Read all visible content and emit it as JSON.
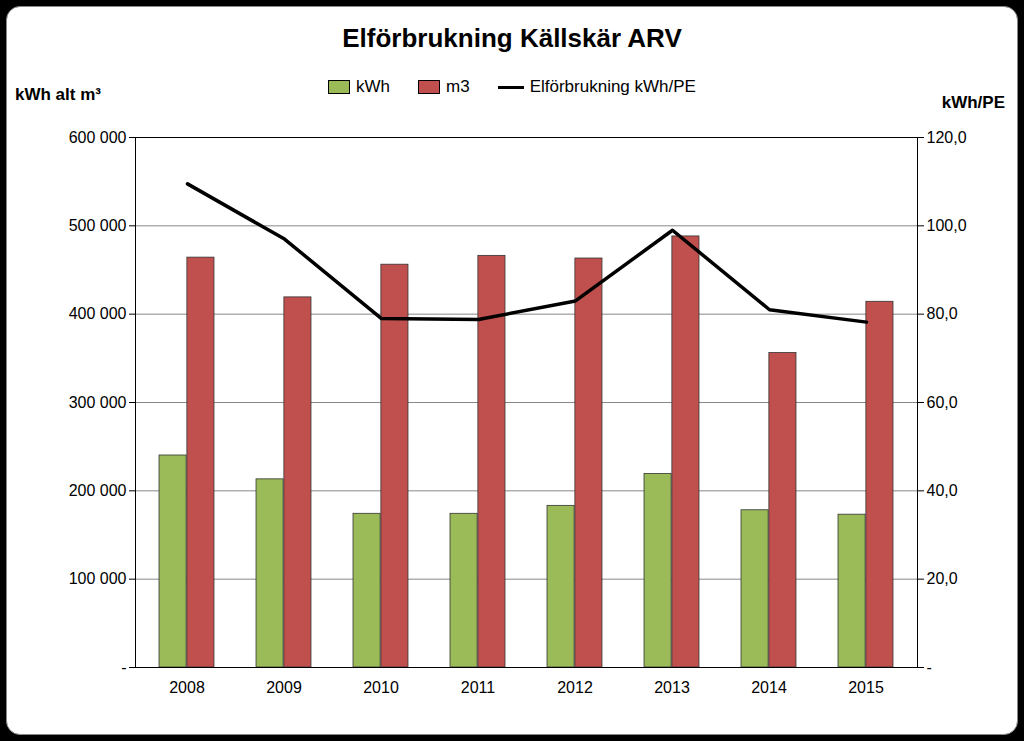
{
  "chart_data": {
    "type": "bar",
    "title": "Elförbrukning Källskär ARV",
    "categories": [
      "2008",
      "2009",
      "2010",
      "2011",
      "2012",
      "2013",
      "2014",
      "2015"
    ],
    "series": [
      {
        "name": "kWh",
        "color": "#9bbb59",
        "values": [
          240000,
          213000,
          174000,
          174000,
          183000,
          219000,
          178000,
          173000
        ]
      },
      {
        "name": "m3",
        "color": "#c0504d",
        "values": [
          464000,
          419000,
          456000,
          466000,
          463000,
          488000,
          356000,
          414000
        ]
      },
      {
        "name": "Elförbrukning kWh/PE",
        "type": "line",
        "axis": "y2",
        "color": "#000000",
        "values": [
          109.5,
          97.0,
          79.0,
          78.8,
          83.0,
          99.0,
          81.0,
          78.2
        ]
      }
    ],
    "y_label": "kWh alt m³",
    "y2_label": "kWh/PE",
    "ylim": [
      0,
      600000
    ],
    "yticks": [
      {
        "value": 0,
        "label": "-"
      },
      {
        "value": 100000,
        "label": "100 000"
      },
      {
        "value": 200000,
        "label": "200 000"
      },
      {
        "value": 300000,
        "label": "300 000"
      },
      {
        "value": 400000,
        "label": "400 000"
      },
      {
        "value": 500000,
        "label": "500 000"
      },
      {
        "value": 600000,
        "label": "600 000"
      }
    ],
    "y2lim": [
      0,
      120
    ],
    "y2ticks": [
      {
        "value": 0,
        "label": "-"
      },
      {
        "value": 20,
        "label": "20,0"
      },
      {
        "value": 40,
        "label": "40,0"
      },
      {
        "value": 60,
        "label": "60,0"
      },
      {
        "value": 80,
        "label": "80,0"
      },
      {
        "value": 100,
        "label": "100,0"
      },
      {
        "value": 120,
        "label": "120,0"
      }
    ],
    "grid": true,
    "legend": "top"
  }
}
